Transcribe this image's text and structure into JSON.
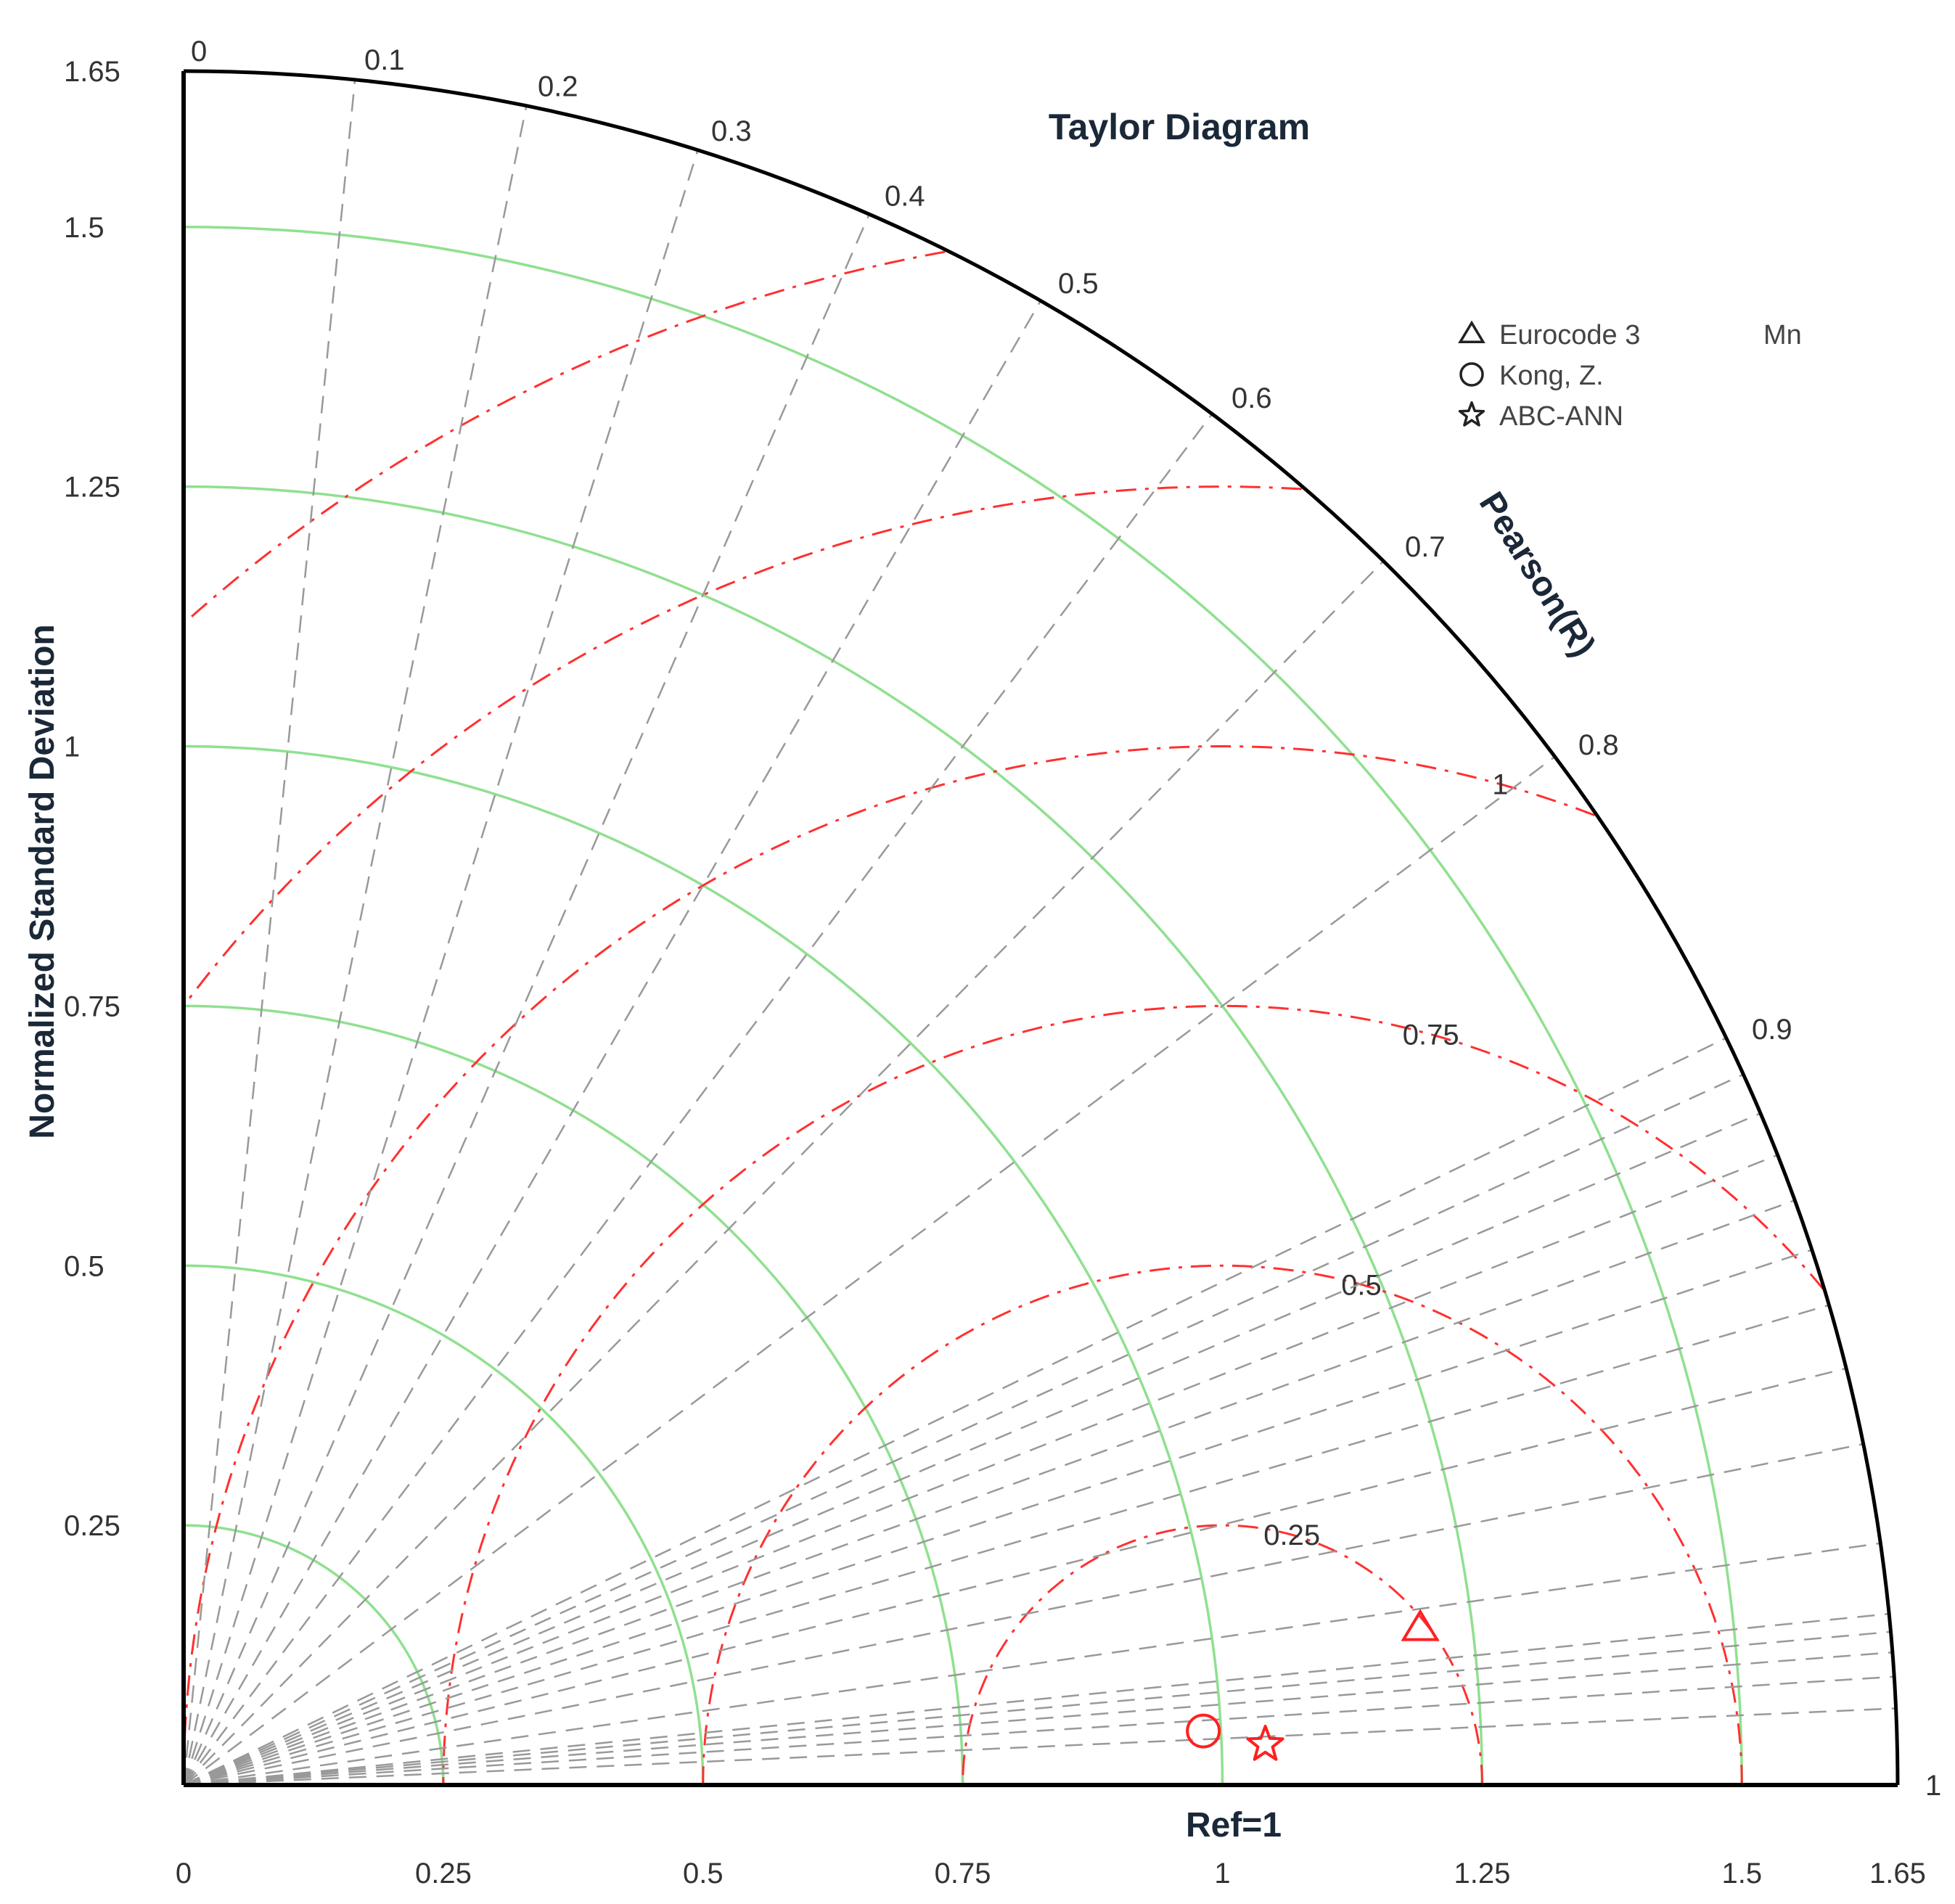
{
  "chart_data": {
    "type": "taylor",
    "title": "Taylor Diagram",
    "ylabel": "Normalized Standard Deviation",
    "xlabel": "Ref=1",
    "arc_label": "Pearson(R)",
    "std_max": 1.65,
    "reference_std": 1,
    "x_ticks": [
      "0",
      "0.25",
      "0.5",
      "0.75",
      "1",
      "1.25",
      "1.5",
      "1.65"
    ],
    "y_ticks": [
      "0",
      "0.25",
      "0.5",
      "0.75",
      "1",
      "1.25",
      "1.5",
      "1.65"
    ],
    "correlation_ticks": [
      "0",
      "0.1",
      "0.2",
      "0.3",
      "0.4",
      "0.5",
      "0.6",
      "0.7",
      "0.8",
      "0.9",
      "1"
    ],
    "std_contours": [
      0.25,
      0.5,
      0.75,
      1,
      1.25,
      1.5
    ],
    "rmsd_contours": [
      0.25,
      0.5,
      0.75,
      1,
      1.25,
      1.5
    ],
    "rmsd_labels": [
      "0.25",
      "0.5",
      "0.75",
      "1"
    ],
    "legend_group": "Mn",
    "series": [
      {
        "name": "Eurocode 3",
        "marker": "triangle",
        "std": 1.2,
        "correlation": 0.992
      },
      {
        "name": "Kong, Z.",
        "marker": "circle",
        "std": 0.983,
        "correlation": 0.9986
      },
      {
        "name": "ABC-ANN",
        "marker": "star",
        "std": 1.042,
        "correlation": 0.9993
      }
    ],
    "colors": {
      "std_arcs": "#90e090",
      "rmsd_arcs": "#ff3030",
      "correlation_lines": "#999999",
      "markers": "#ff2020",
      "frame": "#000000"
    }
  }
}
